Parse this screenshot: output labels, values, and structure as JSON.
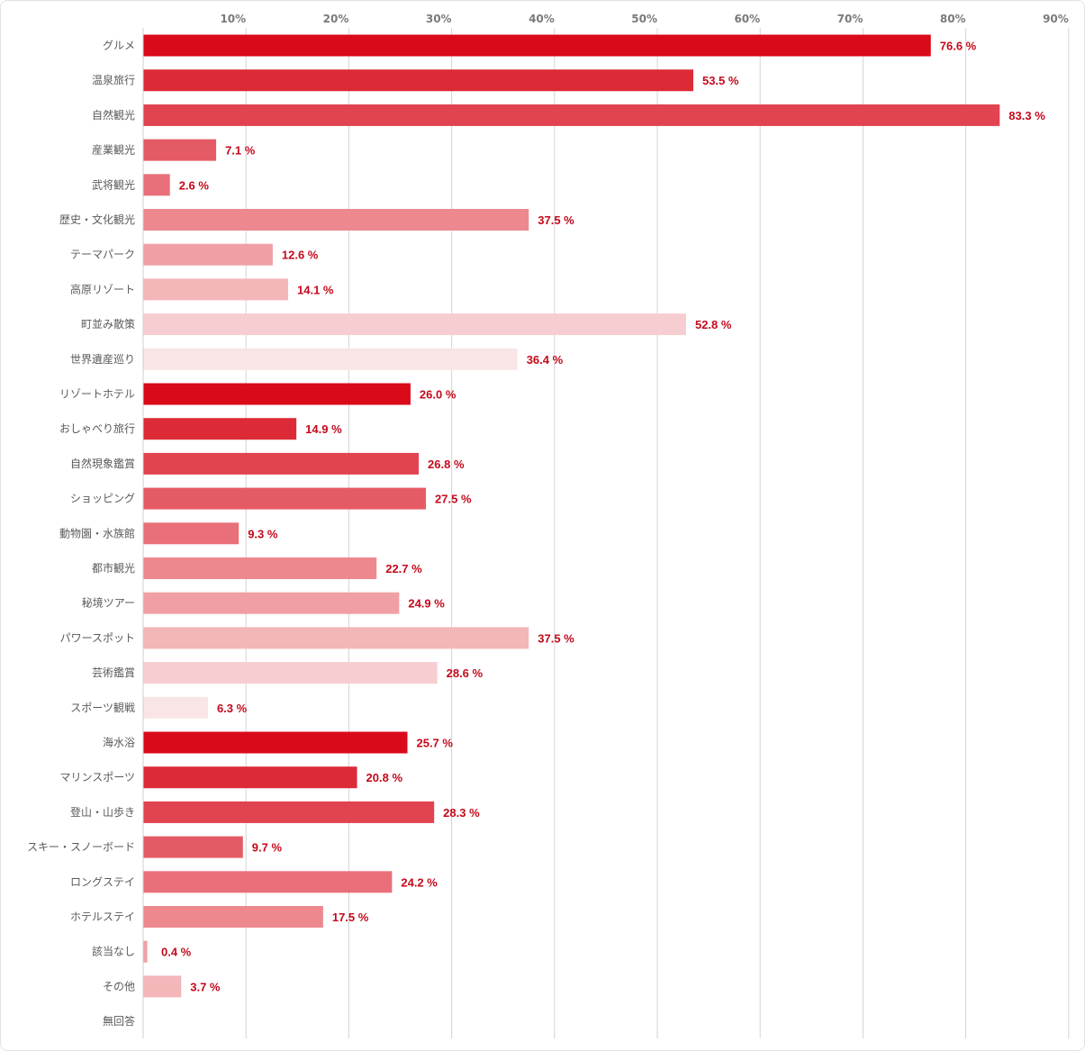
{
  "chart_data": {
    "type": "bar",
    "orientation": "horizontal",
    "title": "",
    "xlabel": "",
    "ylabel": "",
    "xlim": [
      0,
      90
    ],
    "x_ticks": [
      "10%",
      "20%",
      "30%",
      "40%",
      "50%",
      "60%",
      "70%",
      "80%",
      "90%"
    ],
    "tick_values": [
      10,
      20,
      30,
      40,
      50,
      60,
      70,
      80,
      90
    ],
    "x_axis_position": "top",
    "grid": true,
    "legend": "none",
    "value_suffix": " %",
    "categories": [
      "グルメ",
      "温泉旅行",
      "自然観光",
      "産業観光",
      "武将観光",
      "歴史・文化観光",
      "テーマパーク",
      "高原リゾート",
      "町並み散策",
      "世界遺産巡り",
      "リゾートホテル",
      "おしゃべり旅行",
      "自然現象鑑賞",
      "ショッピング",
      "動物園・水族館",
      "都市観光",
      "秘境ツアー",
      "パワースポット",
      "芸術鑑賞",
      "スポーツ観戦",
      "海水浴",
      "マリンスポーツ",
      "登山・山歩き",
      "スキー・スノーボード",
      "ロングステイ",
      "ホテルステイ",
      "該当なし",
      "その他",
      "無回答"
    ],
    "values": [
      76.6,
      53.5,
      83.3,
      7.1,
      2.6,
      37.5,
      12.6,
      14.1,
      52.8,
      36.4,
      26.0,
      14.9,
      26.8,
      27.5,
      9.3,
      22.7,
      24.9,
      37.5,
      28.6,
      6.3,
      25.7,
      20.8,
      28.3,
      9.7,
      24.2,
      17.5,
      0.4,
      3.7,
      null
    ],
    "value_labels": [
      "76.6 %",
      "53.5 %",
      "83.3 %",
      "7.1 %",
      "2.6 %",
      "37.5 %",
      "12.6 %",
      "14.1 %",
      "52.8 %",
      "36.4 %",
      "26.0 %",
      "14.9 %",
      "26.8 %",
      "27.5 %",
      "9.3 %",
      "22.7 %",
      "24.9 %",
      "37.5 %",
      "28.6 %",
      "6.3 %",
      "25.7 %",
      "20.8 %",
      "28.3 %",
      "9.7 %",
      "24.2 %",
      "17.5 %",
      "0.4 %",
      "3.7 %",
      ""
    ],
    "palette": [
      "#d90a1a",
      "#dd2a37",
      "#e14350",
      "#e55b65",
      "#e9707a",
      "#ec888e",
      "#f0a0a5",
      "#f3b6b9",
      "#f6cdd1",
      "#f9e5e6"
    ],
    "value_label_color": "#c4091b"
  }
}
